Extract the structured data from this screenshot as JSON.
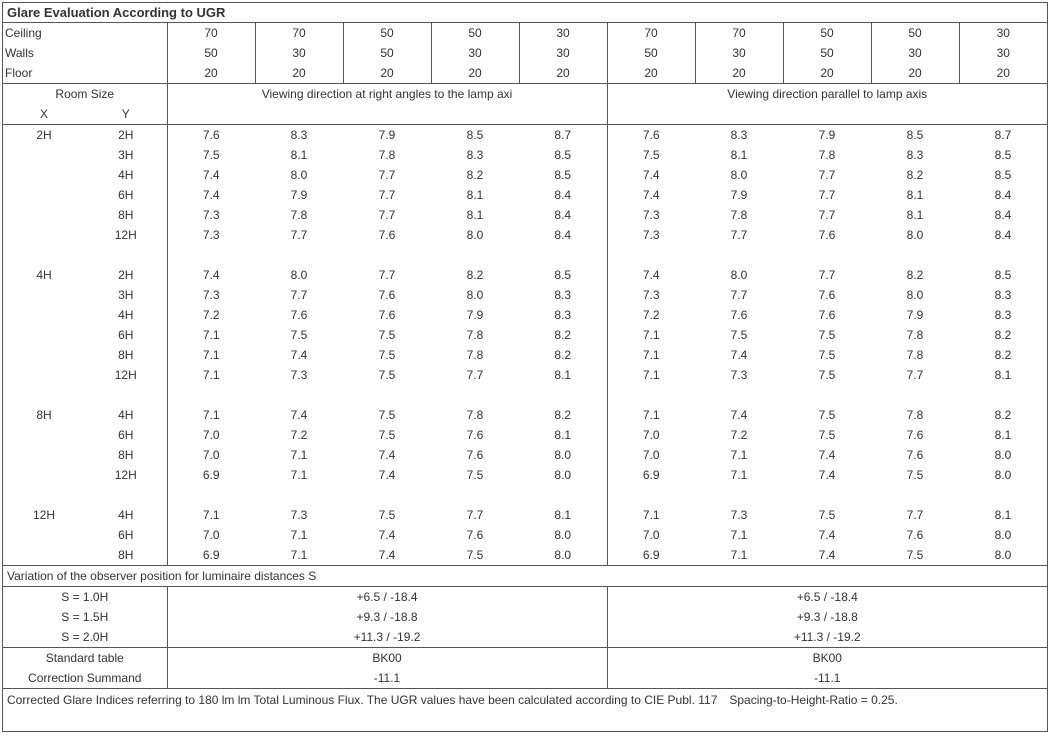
{
  "title": "Glare Evaluation According to UGR",
  "surfaceLabels": [
    "Ceiling",
    "Walls",
    "Floor"
  ],
  "surfaceValues": {
    "Ceiling": [
      "70",
      "70",
      "50",
      "50",
      "30",
      "70",
      "70",
      "50",
      "50",
      "30"
    ],
    "Walls": [
      "50",
      "30",
      "50",
      "30",
      "30",
      "50",
      "30",
      "50",
      "30",
      "30"
    ],
    "Floor": [
      "20",
      "20",
      "20",
      "20",
      "20",
      "20",
      "20",
      "20",
      "20",
      "20"
    ]
  },
  "roomSizeLabel": "Room Size",
  "xLabel": "X",
  "yLabel": "Y",
  "viewLeft": "Viewing direction at right angles to the lamp axi",
  "viewRight": "Viewing direction parallel to lamp axis",
  "groups": [
    {
      "x": "2H",
      "rows": [
        {
          "y": "2H",
          "v": [
            "7.6",
            "8.3",
            "7.9",
            "8.5",
            "8.7",
            "7.6",
            "8.3",
            "7.9",
            "8.5",
            "8.7"
          ]
        },
        {
          "y": "3H",
          "v": [
            "7.5",
            "8.1",
            "7.8",
            "8.3",
            "8.5",
            "7.5",
            "8.1",
            "7.8",
            "8.3",
            "8.5"
          ]
        },
        {
          "y": "4H",
          "v": [
            "7.4",
            "8.0",
            "7.7",
            "8.2",
            "8.5",
            "7.4",
            "8.0",
            "7.7",
            "8.2",
            "8.5"
          ]
        },
        {
          "y": "6H",
          "v": [
            "7.4",
            "7.9",
            "7.7",
            "8.1",
            "8.4",
            "7.4",
            "7.9",
            "7.7",
            "8.1",
            "8.4"
          ]
        },
        {
          "y": "8H",
          "v": [
            "7.3",
            "7.8",
            "7.7",
            "8.1",
            "8.4",
            "7.3",
            "7.8",
            "7.7",
            "8.1",
            "8.4"
          ]
        },
        {
          "y": "12H",
          "v": [
            "7.3",
            "7.7",
            "7.6",
            "8.0",
            "8.4",
            "7.3",
            "7.7",
            "7.6",
            "8.0",
            "8.4"
          ]
        }
      ]
    },
    {
      "x": "4H",
      "rows": [
        {
          "y": "2H",
          "v": [
            "7.4",
            "8.0",
            "7.7",
            "8.2",
            "8.5",
            "7.4",
            "8.0",
            "7.7",
            "8.2",
            "8.5"
          ]
        },
        {
          "y": "3H",
          "v": [
            "7.3",
            "7.7",
            "7.6",
            "8.0",
            "8.3",
            "7.3",
            "7.7",
            "7.6",
            "8.0",
            "8.3"
          ]
        },
        {
          "y": "4H",
          "v": [
            "7.2",
            "7.6",
            "7.6",
            "7.9",
            "8.3",
            "7.2",
            "7.6",
            "7.6",
            "7.9",
            "8.3"
          ]
        },
        {
          "y": "6H",
          "v": [
            "7.1",
            "7.5",
            "7.5",
            "7.8",
            "8.2",
            "7.1",
            "7.5",
            "7.5",
            "7.8",
            "8.2"
          ]
        },
        {
          "y": "8H",
          "v": [
            "7.1",
            "7.4",
            "7.5",
            "7.8",
            "8.2",
            "7.1",
            "7.4",
            "7.5",
            "7.8",
            "8.2"
          ]
        },
        {
          "y": "12H",
          "v": [
            "7.1",
            "7.3",
            "7.5",
            "7.7",
            "8.1",
            "7.1",
            "7.3",
            "7.5",
            "7.7",
            "8.1"
          ]
        }
      ]
    },
    {
      "x": "8H",
      "rows": [
        {
          "y": "4H",
          "v": [
            "7.1",
            "7.4",
            "7.5",
            "7.8",
            "8.2",
            "7.1",
            "7.4",
            "7.5",
            "7.8",
            "8.2"
          ]
        },
        {
          "y": "6H",
          "v": [
            "7.0",
            "7.2",
            "7.5",
            "7.6",
            "8.1",
            "7.0",
            "7.2",
            "7.5",
            "7.6",
            "8.1"
          ]
        },
        {
          "y": "8H",
          "v": [
            "7.0",
            "7.1",
            "7.4",
            "7.6",
            "8.0",
            "7.0",
            "7.1",
            "7.4",
            "7.6",
            "8.0"
          ]
        },
        {
          "y": "12H",
          "v": [
            "6.9",
            "7.1",
            "7.4",
            "7.5",
            "8.0",
            "6.9",
            "7.1",
            "7.4",
            "7.5",
            "8.0"
          ]
        }
      ]
    },
    {
      "x": "12H",
      "rows": [
        {
          "y": "4H",
          "v": [
            "7.1",
            "7.3",
            "7.5",
            "7.7",
            "8.1",
            "7.1",
            "7.3",
            "7.5",
            "7.7",
            "8.1"
          ]
        },
        {
          "y": "6H",
          "v": [
            "7.0",
            "7.1",
            "7.4",
            "7.6",
            "8.0",
            "7.0",
            "7.1",
            "7.4",
            "7.6",
            "8.0"
          ]
        },
        {
          "y": "8H",
          "v": [
            "6.9",
            "7.1",
            "7.4",
            "7.5",
            "8.0",
            "6.9",
            "7.1",
            "7.4",
            "7.5",
            "8.0"
          ]
        }
      ]
    }
  ],
  "variationLabel": "Variation of the observer position for luminaire distances S",
  "variationRows": [
    {
      "label": "S = 1.0H",
      "left": "+6.5 / -18.4",
      "right": "+6.5 / -18.4"
    },
    {
      "label": "S = 1.5H",
      "left": "+9.3 / -18.8",
      "right": "+9.3 / -18.8"
    },
    {
      "label": "S = 2.0H",
      "left": "+11.3 / -19.2",
      "right": "+11.3 / -19.2"
    }
  ],
  "stdTableLabel": "Standard table",
  "stdTableVal": "BK00",
  "corrLabel": "Correction Summand",
  "corrVal": "-11.1",
  "footnote": "Corrected Glare Indices referring to 180 lm lm Total Luminous Flux. The UGR values have been calculated according to CIE Publ. 117 Spacing-to-Height-Ratio = 0.25."
}
